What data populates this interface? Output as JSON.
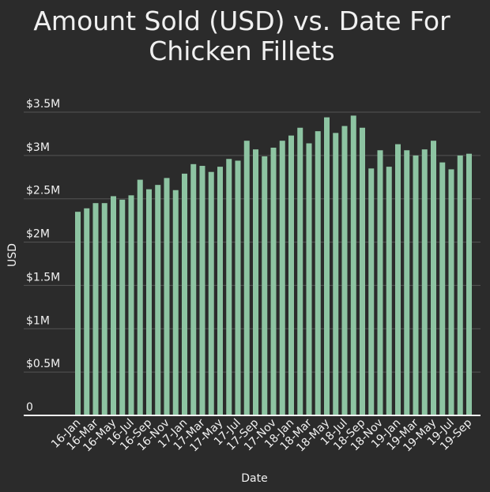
{
  "chart_data": {
    "type": "bar",
    "title_lines": [
      "Amount Sold (USD) vs. Date For",
      "Chicken Fillets"
    ],
    "xlabel": "Date",
    "ylabel": "USD",
    "ylim": [
      0,
      3500000
    ],
    "y_ticks": [
      0,
      500000,
      1000000,
      1500000,
      2000000,
      2500000,
      3000000,
      3500000
    ],
    "y_tick_labels": [
      "0",
      "$0.5M",
      "$1M",
      "$1.5M",
      "$2M",
      "$2.5M",
      "$3M",
      "$3.5M"
    ],
    "x_tick_labels": [
      "16-Jan",
      "16-Mar",
      "16-May",
      "16-Jul",
      "16-Sep",
      "16-Nov",
      "17-Jan",
      "17-Mar",
      "17-May",
      "17-Jul",
      "17-Sep",
      "17-Nov",
      "18-Jan",
      "18-Mar",
      "18-May",
      "18-Jul",
      "18-Sep",
      "18-Nov",
      "19-Jan",
      "19-Mar",
      "19-May",
      "19-Jul",
      "19-Sep"
    ],
    "categories": [
      "16-Jan",
      "16-Feb",
      "16-Mar",
      "16-Apr",
      "16-May",
      "16-Jun",
      "16-Jul",
      "16-Aug",
      "16-Sep",
      "16-Oct",
      "16-Nov",
      "16-Dec",
      "17-Jan",
      "17-Feb",
      "17-Mar",
      "17-Apr",
      "17-May",
      "17-Jun",
      "17-Jul",
      "17-Aug",
      "17-Sep",
      "17-Oct",
      "17-Nov",
      "17-Dec",
      "18-Jan",
      "18-Feb",
      "18-Mar",
      "18-Apr",
      "18-May",
      "18-Jun",
      "18-Jul",
      "18-Aug",
      "18-Sep",
      "18-Oct",
      "18-Nov",
      "18-Dec",
      "19-Jan",
      "19-Feb",
      "19-Mar",
      "19-Apr",
      "19-May",
      "19-Jun",
      "19-Jul",
      "19-Aug",
      "19-Sep"
    ],
    "values": [
      2350000,
      2390000,
      2450000,
      2450000,
      2530000,
      2490000,
      2540000,
      2720000,
      2610000,
      2660000,
      2740000,
      2600000,
      2790000,
      2900000,
      2880000,
      2810000,
      2870000,
      2960000,
      2940000,
      3170000,
      3070000,
      2990000,
      3090000,
      3170000,
      3230000,
      3320000,
      3140000,
      3280000,
      3440000,
      3260000,
      3340000,
      3460000,
      3320000,
      2850000,
      3060000,
      2870000,
      3130000,
      3060000,
      3000000,
      3070000,
      3170000,
      2920000,
      2840000,
      3000000,
      3020000
    ],
    "bar_color": "#8dc4a2",
    "grid": true
  }
}
